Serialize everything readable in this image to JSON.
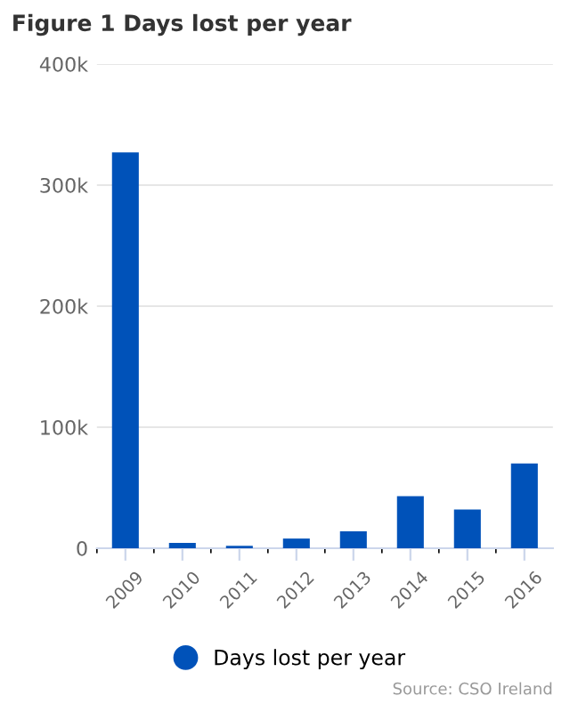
{
  "chart_data": {
    "type": "bar",
    "title": "Figure 1 Days lost per year",
    "categories": [
      "2009",
      "2010",
      "2011",
      "2012",
      "2013",
      "2014",
      "2015",
      "2016"
    ],
    "series": [
      {
        "name": "Days lost per year",
        "color": "#0052b9",
        "values": [
          327000,
          4500,
          2000,
          8000,
          14000,
          43000,
          32000,
          70000
        ]
      }
    ],
    "ylim": [
      0,
      400000
    ],
    "yticks": [
      {
        "value": 0,
        "label": "0"
      },
      {
        "value": 100000,
        "label": "100k"
      },
      {
        "value": 200000,
        "label": "200k"
      },
      {
        "value": 300000,
        "label": "300k"
      },
      {
        "value": 400000,
        "label": "400k"
      }
    ],
    "grid": "y",
    "legend": "bottom",
    "annotations": [
      "Source: CSO Ireland"
    ]
  }
}
